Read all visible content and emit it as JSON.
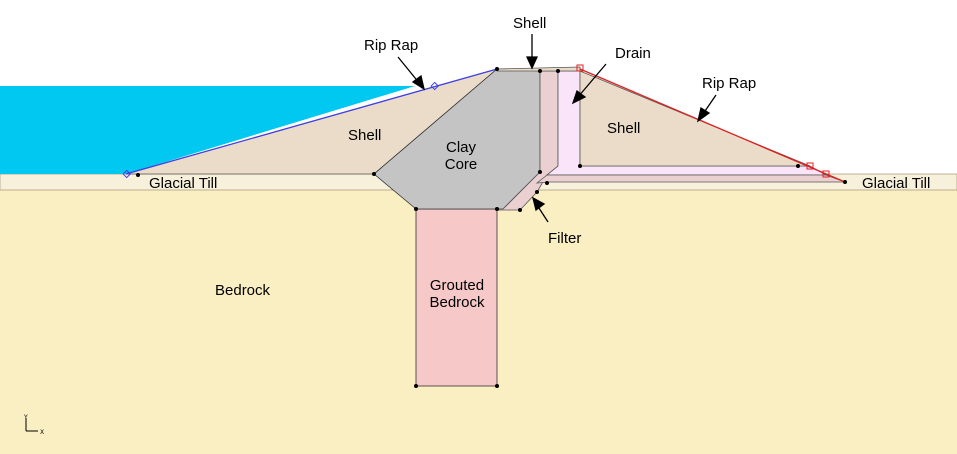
{
  "colors": {
    "background": "#ffffff",
    "water": "#00c8f0",
    "shell": "#eadcc8",
    "clay_core": "#c4c4c4",
    "glacial_till": "#f7f1dc",
    "bedrock": "#faeec3",
    "grouted_bedrock": "#f6c8c8",
    "filter": "#ead0d0",
    "drain": "#fae4fa",
    "riprap_upstream": "#4040e0",
    "riprap_downstream": "#e02020"
  },
  "labels": {
    "shell_top": "Shell",
    "riprap_left": "Rip Rap",
    "drain": "Drain",
    "riprap_right": "Rip Rap",
    "shell_left": "Shell",
    "clay_core_1": "Clay",
    "clay_core_2": "Core",
    "shell_right": "Shell",
    "glacial_till_left": "Glacial Till",
    "glacial_till_right": "Glacial Till",
    "filter": "Filter",
    "bedrock": "Bedrock",
    "grouted_1": "Grouted",
    "grouted_2": "Bedrock"
  },
  "axes": {
    "y": "Y",
    "x": "X"
  }
}
